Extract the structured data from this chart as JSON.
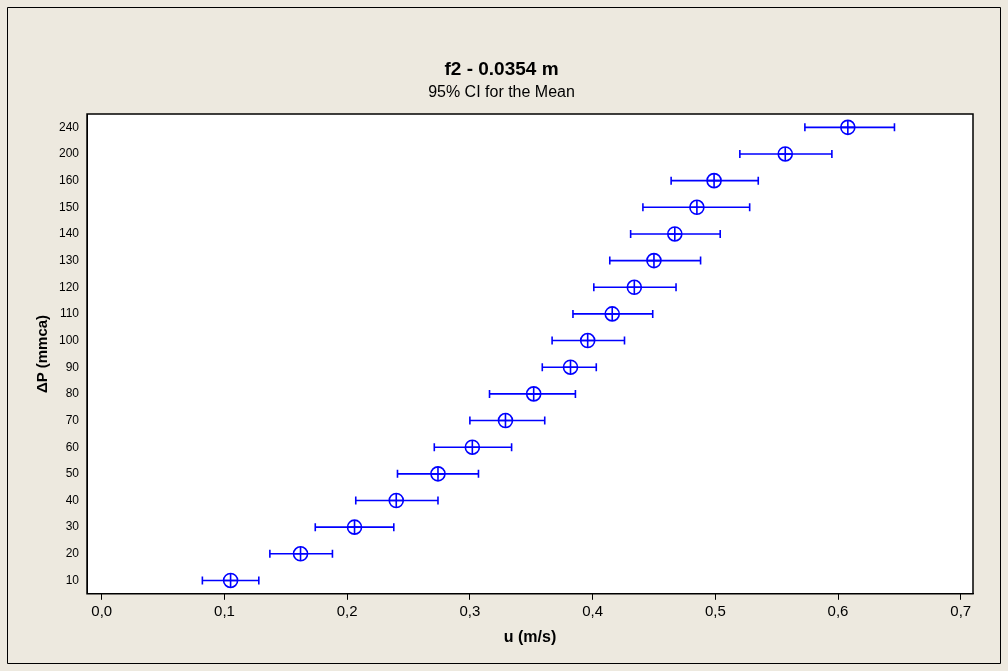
{
  "chart_data": {
    "type": "scatter",
    "orientation": "horizontal",
    "title": "f2 - 0.0354 m",
    "subtitle": "95% CI for the Mean",
    "xlabel": "u (m/s)",
    "ylabel": "ΔP (mmca)",
    "categories": [
      "240",
      "200",
      "160",
      "150",
      "140",
      "130",
      "120",
      "110",
      "100",
      "90",
      "80",
      "70",
      "60",
      "50",
      "40",
      "30",
      "20",
      "10"
    ],
    "series": [
      {
        "color": "#0000ff",
        "values": [
          0.608,
          0.557,
          0.499,
          0.485,
          0.467,
          0.45,
          0.434,
          0.416,
          0.396,
          0.382,
          0.352,
          0.329,
          0.302,
          0.274,
          0.24,
          0.206,
          0.162,
          0.105
        ],
        "errors": [
          [
            0.573,
            0.646
          ],
          [
            0.52,
            0.595
          ],
          [
            0.464,
            0.535
          ],
          [
            0.441,
            0.528
          ],
          [
            0.431,
            0.504
          ],
          [
            0.414,
            0.488
          ],
          [
            0.401,
            0.468
          ],
          [
            0.384,
            0.449
          ],
          [
            0.367,
            0.426
          ],
          [
            0.359,
            0.403
          ],
          [
            0.316,
            0.386
          ],
          [
            0.3,
            0.361
          ],
          [
            0.271,
            0.334
          ],
          [
            0.241,
            0.307
          ],
          [
            0.207,
            0.274
          ],
          [
            0.174,
            0.238
          ],
          [
            0.137,
            0.188
          ],
          [
            0.082,
            0.128
          ]
        ]
      }
    ],
    "xlim": [
      -0.012,
      0.71
    ],
    "xticks": [
      {
        "value": 0,
        "label": "0,0"
      },
      {
        "value": 0.1,
        "label": "0,1"
      },
      {
        "value": 0.2,
        "label": "0,2"
      },
      {
        "value": 0.3,
        "label": "0,3"
      },
      {
        "value": 0.4,
        "label": "0,4"
      },
      {
        "value": 0.5,
        "label": "0,5"
      },
      {
        "value": 0.6,
        "label": "0,6"
      },
      {
        "value": 0.7,
        "label": "0,7"
      }
    ],
    "marker": "circle",
    "grid": false,
    "legend": false
  }
}
